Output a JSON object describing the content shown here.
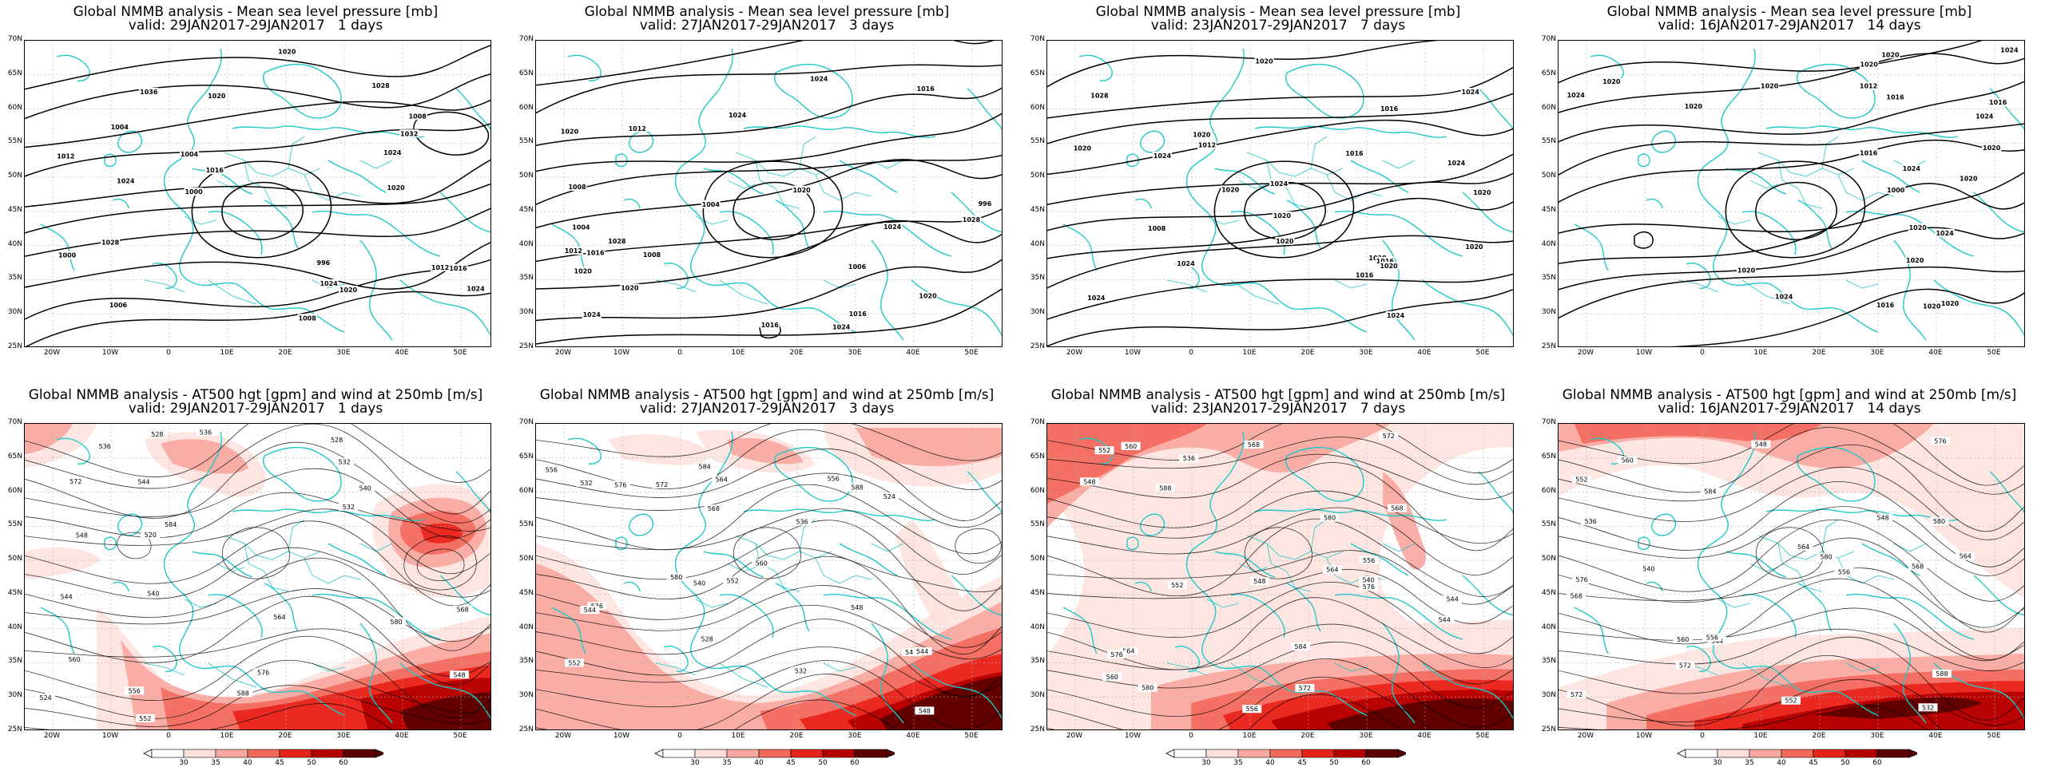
{
  "panels": [
    {
      "title": "Global NMMB analysis - Mean sea level pressure [mb]",
      "valid": "valid: 29JAN2017-29JAN2017   1 days",
      "kind": "mslp",
      "labels": [
        "1006",
        "996",
        "1000",
        "1004",
        "1008",
        "1012",
        "1016",
        "1020",
        "1024",
        "1028",
        "1032",
        "1036",
        "1024",
        "1028",
        "1020",
        "1024",
        "1020",
        "1024",
        "1012",
        "1016",
        "1000",
        "1004",
        "1008",
        "1020"
      ]
    },
    {
      "title": "Global NMMB analysis - Mean sea level pressure [mb]",
      "valid": "valid: 27JAN2017-29JAN2017   3 days",
      "kind": "mslp",
      "labels": [
        "1006",
        "996",
        "1004",
        "1008",
        "1012",
        "1016",
        "1020",
        "1024",
        "1028",
        "1024",
        "1028",
        "1020",
        "1024",
        "1016",
        "1020",
        "1012",
        "1016",
        "1024",
        "1004",
        "1008",
        "1016",
        "1020",
        "1020",
        "1024"
      ]
    },
    {
      "title": "Global NMMB analysis - Mean sea level pressure [mb]",
      "valid": "valid: 23JAN2017-29JAN2017   7 days",
      "kind": "mslp",
      "labels": [
        "1008",
        "1012",
        "1016",
        "1020",
        "1024",
        "1028",
        "1020",
        "1024",
        "1028",
        "1016",
        "1020",
        "1024",
        "1020",
        "1024",
        "1020",
        "1016",
        "1020",
        "1024",
        "1024",
        "1020",
        "1020",
        "1016",
        "1024",
        "1020"
      ]
    },
    {
      "title": "Global NMMB analysis - Mean sea level pressure [mb]",
      "valid": "valid: 16JAN2017-29JAN2017   14 days",
      "kind": "mslp",
      "labels": [
        "1000",
        "1012",
        "1016",
        "1020",
        "1024",
        "1016",
        "1020",
        "1020",
        "1024",
        "1020",
        "1024",
        "1020",
        "1020",
        "1024",
        "1016",
        "1020",
        "1020",
        "1024",
        "1020",
        "1020",
        "1020",
        "1020",
        "1024",
        "1016"
      ]
    },
    {
      "title": "Global NMMB analysis - AT500 hgt [gpm] and wind at 250mb [m/s]",
      "valid": "valid: 29JAN2017-29JAN2017   1 days",
      "kind": "z500",
      "labels": [
        "520",
        "524",
        "528",
        "532",
        "536",
        "540",
        "544",
        "548",
        "552",
        "556",
        "560",
        "564",
        "568",
        "572",
        "576",
        "580",
        "584",
        "588",
        "548",
        "544",
        "540",
        "536",
        "532",
        "528"
      ]
    },
    {
      "title": "Global NMMB analysis - AT500 hgt [gpm] and wind at 250mb [m/s]",
      "valid": "valid: 27JAN2017-29JAN2017   3 days",
      "kind": "z500",
      "labels": [
        "524",
        "528",
        "532",
        "536",
        "540",
        "544",
        "548",
        "552",
        "556",
        "560",
        "564",
        "568",
        "572",
        "576",
        "580",
        "584",
        "588",
        "532",
        "536",
        "540",
        "544",
        "548",
        "552",
        "556"
      ]
    },
    {
      "title": "Global NMMB analysis - AT500 hgt [gpm] and wind at 250mb [m/s]",
      "valid": "valid: 23JAN2017-29JAN2017   7 days",
      "kind": "z500",
      "labels": [
        "536",
        "540",
        "544",
        "548",
        "552",
        "556",
        "560",
        "564",
        "568",
        "572",
        "576",
        "580",
        "584",
        "588",
        "548",
        "544",
        "552",
        "556",
        "560",
        "564",
        "568",
        "572",
        "576",
        "580"
      ]
    },
    {
      "title": "Global NMMB analysis - AT500 hgt [gpm] and wind at 250mb [m/s]",
      "valid": "valid: 16JAN2017-29JAN2017   14 days",
      "kind": "z500",
      "labels": [
        "532",
        "536",
        "540",
        "544",
        "548",
        "552",
        "556",
        "560",
        "564",
        "568",
        "572",
        "576",
        "580",
        "584",
        "588",
        "548",
        "552",
        "556",
        "560",
        "564",
        "568",
        "572",
        "576",
        "580"
      ]
    }
  ],
  "lat_labels": [
    "70N",
    "65N",
    "60N",
    "55N",
    "50N",
    "45N",
    "40N",
    "35N",
    "30N",
    "25N"
  ],
  "lon_labels": [
    "20W",
    "10W",
    "0",
    "10E",
    "20E",
    "30E",
    "40E",
    "50E"
  ],
  "colorbar": {
    "ticks": [
      "30",
      "35",
      "40",
      "45",
      "50",
      "60"
    ],
    "colors": [
      "#fde0dc",
      "#f9a8a0",
      "#f36a5e",
      "#e8231a",
      "#b30000",
      "#5a0000"
    ]
  },
  "colors": {
    "coast": "#20c8c8",
    "isobar": "#000000",
    "grid": "#b0b0b0"
  }
}
